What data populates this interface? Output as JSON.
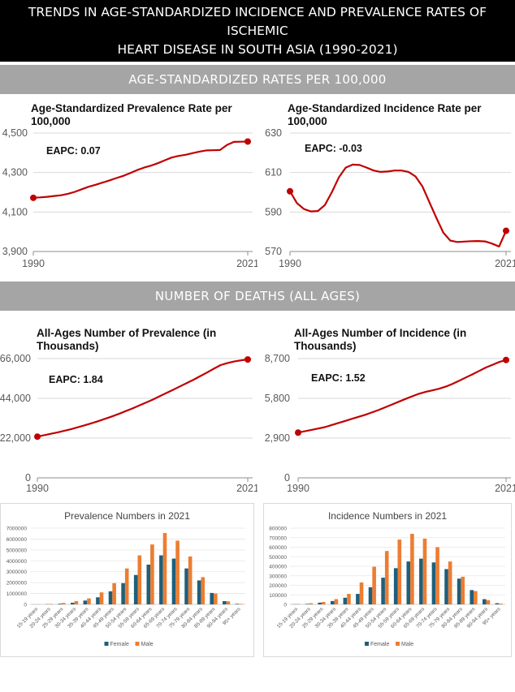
{
  "header": {
    "title_line1": "TRENDS IN AGE-STANDARDIZED INCIDENCE AND PREVALENCE RATES OF ISCHEMIC",
    "title_line2": "HEART DISEASE IN SOUTH ASIA (1990-2021)"
  },
  "sections": {
    "rates": "AGE-STANDARDIZED RATES PER 100,000",
    "deaths": "NUMBER OF DEATHS (ALL AGES)"
  },
  "colors": {
    "line": "#c00000",
    "female": "#1f5f7a",
    "male": "#ed7d31",
    "grid": "#d9d9d9"
  },
  "chart_data": [
    {
      "id": "prev_rate",
      "type": "line",
      "title": "Age-Standardized Prevalence Rate per 100,000",
      "annotation": "EAPC: 0.07",
      "x": [
        1990,
        1991,
        1992,
        1993,
        1994,
        1995,
        1996,
        1997,
        1998,
        1999,
        2000,
        2001,
        2002,
        2003,
        2004,
        2005,
        2006,
        2007,
        2008,
        2009,
        2010,
        2011,
        2012,
        2013,
        2014,
        2015,
        2016,
        2017,
        2018,
        2019,
        2020,
        2021
      ],
      "values": [
        4172,
        4174,
        4177,
        4181,
        4185,
        4192,
        4202,
        4215,
        4228,
        4238,
        4249,
        4260,
        4272,
        4283,
        4297,
        4312,
        4325,
        4335,
        4347,
        4362,
        4376,
        4384,
        4390,
        4398,
        4406,
        4412,
        4413,
        4414,
        4440,
        4455,
        4456,
        4457
      ],
      "xticks": [
        "1990",
        "2021"
      ],
      "yticks": [
        "3,900",
        "4,100",
        "4,300",
        "4,500"
      ],
      "ylim": [
        3900,
        4500
      ]
    },
    {
      "id": "inc_rate",
      "type": "line",
      "title": "Age-Standardized Incidence Rate per 100,000",
      "annotation": "EAPC: -0.03",
      "x": [
        1990,
        1991,
        1992,
        1993,
        1994,
        1995,
        1996,
        1997,
        1998,
        1999,
        2000,
        2001,
        2002,
        2003,
        2004,
        2005,
        2006,
        2007,
        2008,
        2009,
        2010,
        2011,
        2012,
        2013,
        2014,
        2015,
        2016,
        2017,
        2018,
        2019,
        2020,
        2021
      ],
      "values": [
        600.5,
        594.5,
        591.5,
        590.3,
        590.5,
        593.5,
        600,
        607.5,
        612.5,
        614,
        613.8,
        612.5,
        611,
        610.3,
        610.5,
        611,
        611,
        610.3,
        608,
        603,
        595,
        587,
        579.5,
        575.5,
        574.8,
        575,
        575.2,
        575.3,
        575.1,
        574,
        572.5,
        580.5
      ],
      "xticks": [
        "1990",
        "2021"
      ],
      "yticks": [
        "570",
        "590",
        "610",
        "630"
      ],
      "ylim": [
        570,
        630
      ]
    },
    {
      "id": "prev_num",
      "type": "line",
      "title": "All-Ages Number of Prevalence (in Thousands)",
      "annotation": "EAPC: 1.84",
      "x": [
        1990,
        1991,
        1992,
        1993,
        1994,
        1995,
        1996,
        1997,
        1998,
        1999,
        2000,
        2001,
        2002,
        2003,
        2004,
        2005,
        2006,
        2007,
        2008,
        2009,
        2010,
        2011,
        2012,
        2013,
        2014,
        2015,
        2016,
        2017,
        2018,
        2019,
        2020,
        2021
      ],
      "values": [
        22800,
        23600,
        24400,
        25200,
        26100,
        27000,
        28000,
        29100,
        30200,
        31400,
        32700,
        34000,
        35400,
        36900,
        38400,
        40000,
        41600,
        43300,
        45100,
        46900,
        48700,
        50600,
        52400,
        54300,
        56300,
        58300,
        60400,
        62400,
        63500,
        64400,
        65000,
        65500
      ],
      "xticks": [
        "1990",
        "2021"
      ],
      "yticks": [
        "0",
        "22,000",
        "44,000",
        "66,000"
      ],
      "ylim": [
        0,
        66000
      ]
    },
    {
      "id": "inc_num",
      "type": "line",
      "title": "All-Ages Number of Incidence (in Thousands)",
      "annotation": "EAPC: 1.52",
      "x": [
        1990,
        1991,
        1992,
        1993,
        1994,
        1995,
        1996,
        1997,
        1998,
        1999,
        2000,
        2001,
        2002,
        2003,
        2004,
        2005,
        2006,
        2007,
        2008,
        2009,
        2010,
        2011,
        2012,
        2013,
        2014,
        2015,
        2016,
        2017,
        2018,
        2019,
        2020,
        2021
      ],
      "values": [
        3300,
        3400,
        3500,
        3600,
        3700,
        3850,
        4000,
        4150,
        4300,
        4450,
        4600,
        4770,
        4950,
        5150,
        5350,
        5550,
        5750,
        5950,
        6130,
        6270,
        6380,
        6500,
        6650,
        6850,
        7080,
        7320,
        7550,
        7800,
        8050,
        8250,
        8450,
        8600
      ],
      "xticks": [
        "1990",
        "2021"
      ],
      "yticks": [
        "0",
        "2,900",
        "5,800",
        "8,700"
      ],
      "ylim": [
        0,
        8700
      ]
    },
    {
      "id": "prev_bar",
      "type": "bar",
      "title": "Prevalence Numbers in 2021",
      "categories": [
        "15-19 years",
        "20-24 years",
        "25-29 years",
        "30-34 years",
        "35-39 years",
        "40-44 years",
        "45-49 years",
        "50-54 years",
        "55-59 years",
        "60-64 years",
        "65-69 years",
        "70-74 years",
        "75-79 years",
        "80-84 years",
        "85-89 years",
        "90-94 years",
        "95+ years"
      ],
      "series": [
        {
          "name": "Female",
          "values": [
            5000,
            20000,
            60000,
            150000,
            350000,
            650000,
            1200000,
            1950000,
            2700000,
            3650000,
            4500000,
            4200000,
            3300000,
            2200000,
            1050000,
            300000,
            50000
          ]
        },
        {
          "name": "Male",
          "values": [
            10000,
            40000,
            130000,
            300000,
            550000,
            1100000,
            1950000,
            3300000,
            4500000,
            5500000,
            6550000,
            5850000,
            4400000,
            2500000,
            1000000,
            280000,
            40000
          ]
        }
      ],
      "yticks": [
        "0",
        "1000000",
        "2000000",
        "3000000",
        "4000000",
        "5000000",
        "6000000",
        "7000000"
      ],
      "ylim": [
        0,
        7000000
      ]
    },
    {
      "id": "inc_bar",
      "type": "bar",
      "title": "Incidence Numbers in 2021",
      "categories": [
        "15-19 years",
        "20-24 years",
        "25-29 years",
        "30-34 years",
        "35-39 years",
        "40-44 years",
        "45-49 years",
        "50-54 years",
        "55-59 years",
        "60-64 years",
        "65-69 years",
        "70-74 years",
        "75-79 years",
        "80-84 years",
        "85-89 years",
        "90-94 years",
        "95+ years"
      ],
      "series": [
        {
          "name": "Female",
          "values": [
            2000,
            5000,
            18000,
            35000,
            70000,
            110000,
            180000,
            280000,
            380000,
            450000,
            480000,
            440000,
            370000,
            270000,
            150000,
            55000,
            12000
          ]
        },
        {
          "name": "Male",
          "values": [
            4000,
            12000,
            25000,
            55000,
            110000,
            230000,
            395000,
            560000,
            680000,
            740000,
            690000,
            600000,
            450000,
            290000,
            140000,
            45000,
            8000
          ]
        }
      ],
      "yticks": [
        "0",
        "100000",
        "200000",
        "300000",
        "400000",
        "500000",
        "600000",
        "700000",
        "800000"
      ],
      "ylim": [
        0,
        800000
      ]
    }
  ]
}
